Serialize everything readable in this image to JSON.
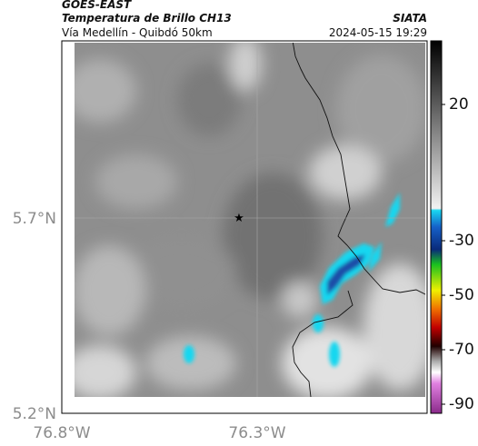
{
  "header": {
    "satellite": "GOES-EAST",
    "product": "Temperatura de Brillo CH13",
    "location": "Vía Medellín - Quibdó 50km",
    "source": "SIATA",
    "timestamp": "2024-05-15 19:29"
  },
  "map": {
    "lat_ticks": [
      "5.7°N",
      "5.2°N"
    ],
    "lon_ticks": [
      "76.8°W",
      "76.3°W"
    ]
  },
  "colorbar": {
    "ticks": [
      20,
      -30,
      -50,
      -70,
      -90
    ]
  }
}
